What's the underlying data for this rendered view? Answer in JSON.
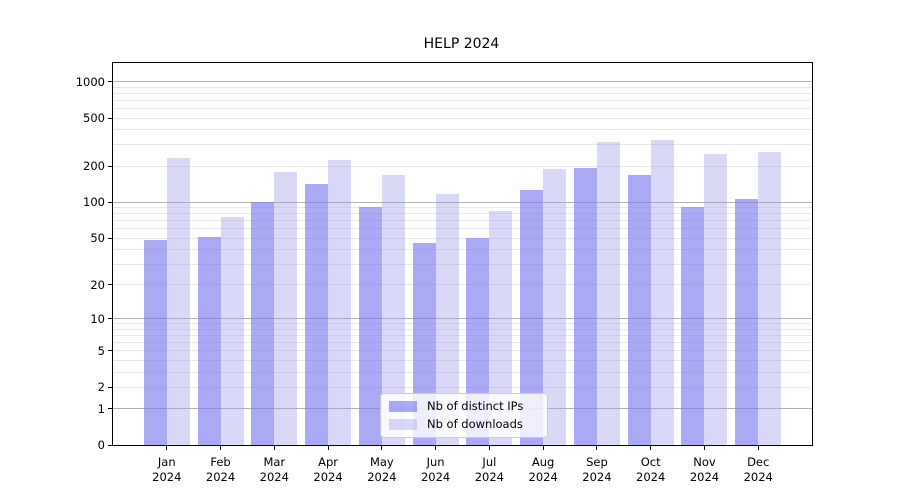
{
  "title": "HELP 2024",
  "colors": {
    "bar_distinct_ips": "rgba(125,125,238,0.66)",
    "bar_downloads": "rgba(160,160,235,0.40)",
    "grid_major": "#b0b0b0",
    "grid_minor": "#e8e8e8",
    "axis": "#000000",
    "legend_border": "#cccccc"
  },
  "chart_data": {
    "type": "bar",
    "title": "HELP 2024",
    "categories": [
      "Jan",
      "Feb",
      "Mar",
      "Apr",
      "May",
      "Jun",
      "Jul",
      "Aug",
      "Sep",
      "Oct",
      "Nov",
      "Dec"
    ],
    "year": "2024",
    "series": [
      {
        "name": "Nb of distinct IPs",
        "values": [
          48,
          51,
          100,
          142,
          92,
          46,
          50,
          128,
          195,
          168,
          91,
          106
        ]
      },
      {
        "name": "Nb of downloads",
        "values": [
          232,
          75,
          178,
          227,
          170,
          117,
          85,
          190,
          315,
          330,
          252,
          260
        ]
      }
    ],
    "xlabel": "",
    "ylabel": "",
    "yscale": "log1p",
    "ylim": [
      0,
      1430
    ],
    "yticks": [
      0,
      1,
      2,
      5,
      10,
      20,
      50,
      100,
      200,
      500,
      1000
    ],
    "major_gridlines": [
      1,
      10,
      100,
      1000
    ],
    "minor_gridlines": [
      2,
      3,
      4,
      5,
      6,
      7,
      8,
      9,
      20,
      30,
      40,
      50,
      60,
      70,
      80,
      90,
      200,
      300,
      400,
      500,
      600,
      700,
      800,
      900
    ],
    "grid": true,
    "legend_position": "lower center"
  }
}
